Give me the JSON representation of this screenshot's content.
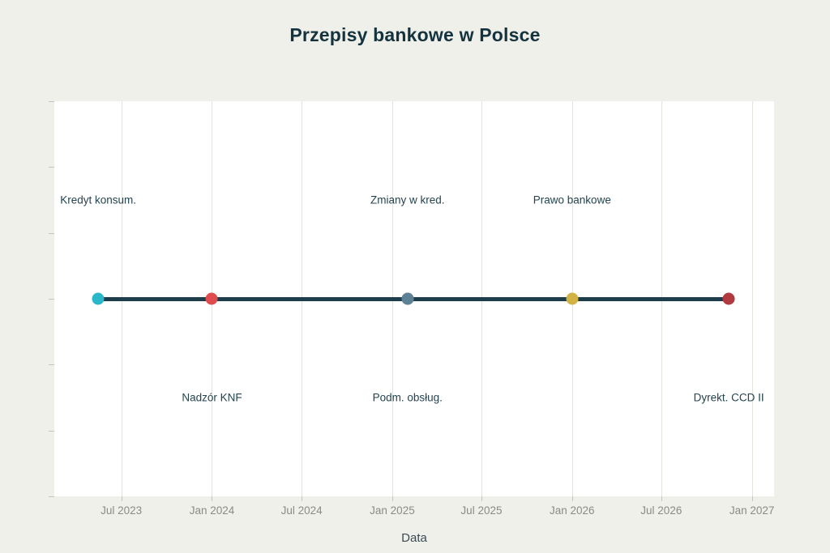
{
  "header": {
    "title": "Przepisy bankowe w Polsce"
  },
  "axis": {
    "x_title": "Data"
  },
  "colors": {
    "page_background": "#f0f0ea",
    "plot_background": "#ffffff",
    "gridline": "#e4e4df",
    "tick_mark": "#c6c5bd",
    "tick_label_text": "#8b8b86",
    "event_label_text": "#24444f",
    "title_text": "#14333e",
    "timeline_line": "#1d3d4a"
  },
  "chart_data": {
    "type": "line",
    "subtype": "timeline",
    "title": "Przepisy bankowe w Polsce",
    "xlabel": "Data",
    "ylabel": "",
    "xlim": [
      "2023-02-15",
      "2027-02-15"
    ],
    "grid": true,
    "legend": false,
    "line_color": "#1d3d4a",
    "y_tick_count": 7,
    "x_ticks": [
      {
        "date": "2023-07-01",
        "label": "Jul 2023"
      },
      {
        "date": "2024-01-01",
        "label": "Jan 2024"
      },
      {
        "date": "2024-07-01",
        "label": "Jul 2024"
      },
      {
        "date": "2025-01-01",
        "label": "Jan 2025"
      },
      {
        "date": "2025-07-01",
        "label": "Jul 2025"
      },
      {
        "date": "2026-01-01",
        "label": "Jan 2026"
      },
      {
        "date": "2026-07-01",
        "label": "Jul 2026"
      },
      {
        "date": "2027-01-01",
        "label": "Jan 2027"
      }
    ],
    "events": [
      {
        "label": "Kredyt konsum.",
        "date": "2023-05-15",
        "color": "#2ab7ca",
        "label_position": "above"
      },
      {
        "label": "Nadzór KNF",
        "date": "2024-01-01",
        "color": "#e04b4e",
        "label_position": "below"
      },
      {
        "label": "Zmiany w kred.",
        "date": "2025-02-01",
        "color": "#5d8195",
        "label_position": "above"
      },
      {
        "label": "Podm. obsług.",
        "date": "2025-02-01",
        "color": "#5d8195",
        "label_position": "below"
      },
      {
        "label": "Prawo bankowe",
        "date": "2026-01-01",
        "color": "#d1b245",
        "label_position": "above"
      },
      {
        "label": "Dyrekt. CCD II",
        "date": "2026-11-15",
        "color": "#b03a40",
        "label_position": "below"
      }
    ]
  }
}
